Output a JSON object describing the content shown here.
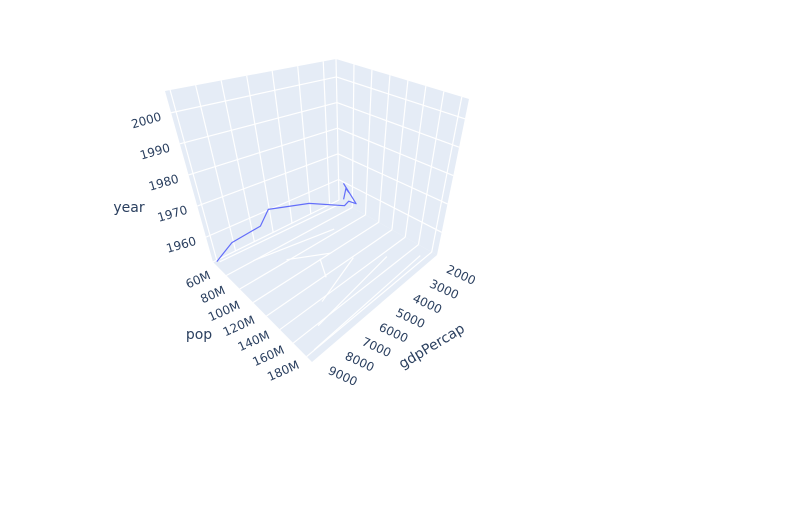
{
  "chart_data": {
    "type": "line3d",
    "title": "",
    "axes": {
      "x": {
        "label": "gdpPercap",
        "ticks": [
          "2000",
          "3000",
          "4000",
          "5000",
          "6000",
          "7000",
          "8000",
          "9000"
        ],
        "range": [
          2000,
          9400
        ]
      },
      "y": {
        "label": "pop",
        "ticks": [
          "60M",
          "80M",
          "100M",
          "120M",
          "140M",
          "160M",
          "180M"
        ],
        "range": [
          56000000,
          190000000
        ]
      },
      "z": {
        "label": "year",
        "ticks": [
          "1960",
          "1970",
          "1980",
          "1990",
          "2000"
        ],
        "range": [
          1952,
          2007
        ]
      }
    },
    "grid": true,
    "legend": "none",
    "series": [
      {
        "color": "#636efa",
        "points": [
          {
            "gdpPercap": 2109,
            "pop": 56600000,
            "year": 1952
          },
          {
            "gdpPercap": 2487,
            "pop": 65550000,
            "year": 1957
          },
          {
            "gdpPercap": 3337,
            "pop": 76040000,
            "year": 1962
          },
          {
            "gdpPercap": 3430,
            "pop": 88050000,
            "year": 1967
          },
          {
            "gdpPercap": 4986,
            "pop": 100840000,
            "year": 1972
          },
          {
            "gdpPercap": 6660,
            "pop": 114310000,
            "year": 1977
          },
          {
            "gdpPercap": 7030,
            "pop": 128960000,
            "year": 1982
          },
          {
            "gdpPercap": 7807,
            "pop": 142940000,
            "year": 1987
          },
          {
            "gdpPercap": 6950,
            "pop": 155980000,
            "year": 1992
          },
          {
            "gdpPercap": 7957,
            "pop": 168550000,
            "year": 1997
          },
          {
            "gdpPercap": 8131,
            "pop": 179910000,
            "year": 2002
          },
          {
            "gdpPercap": 9066,
            "pop": 190010000,
            "year": 2007
          }
        ]
      }
    ]
  }
}
